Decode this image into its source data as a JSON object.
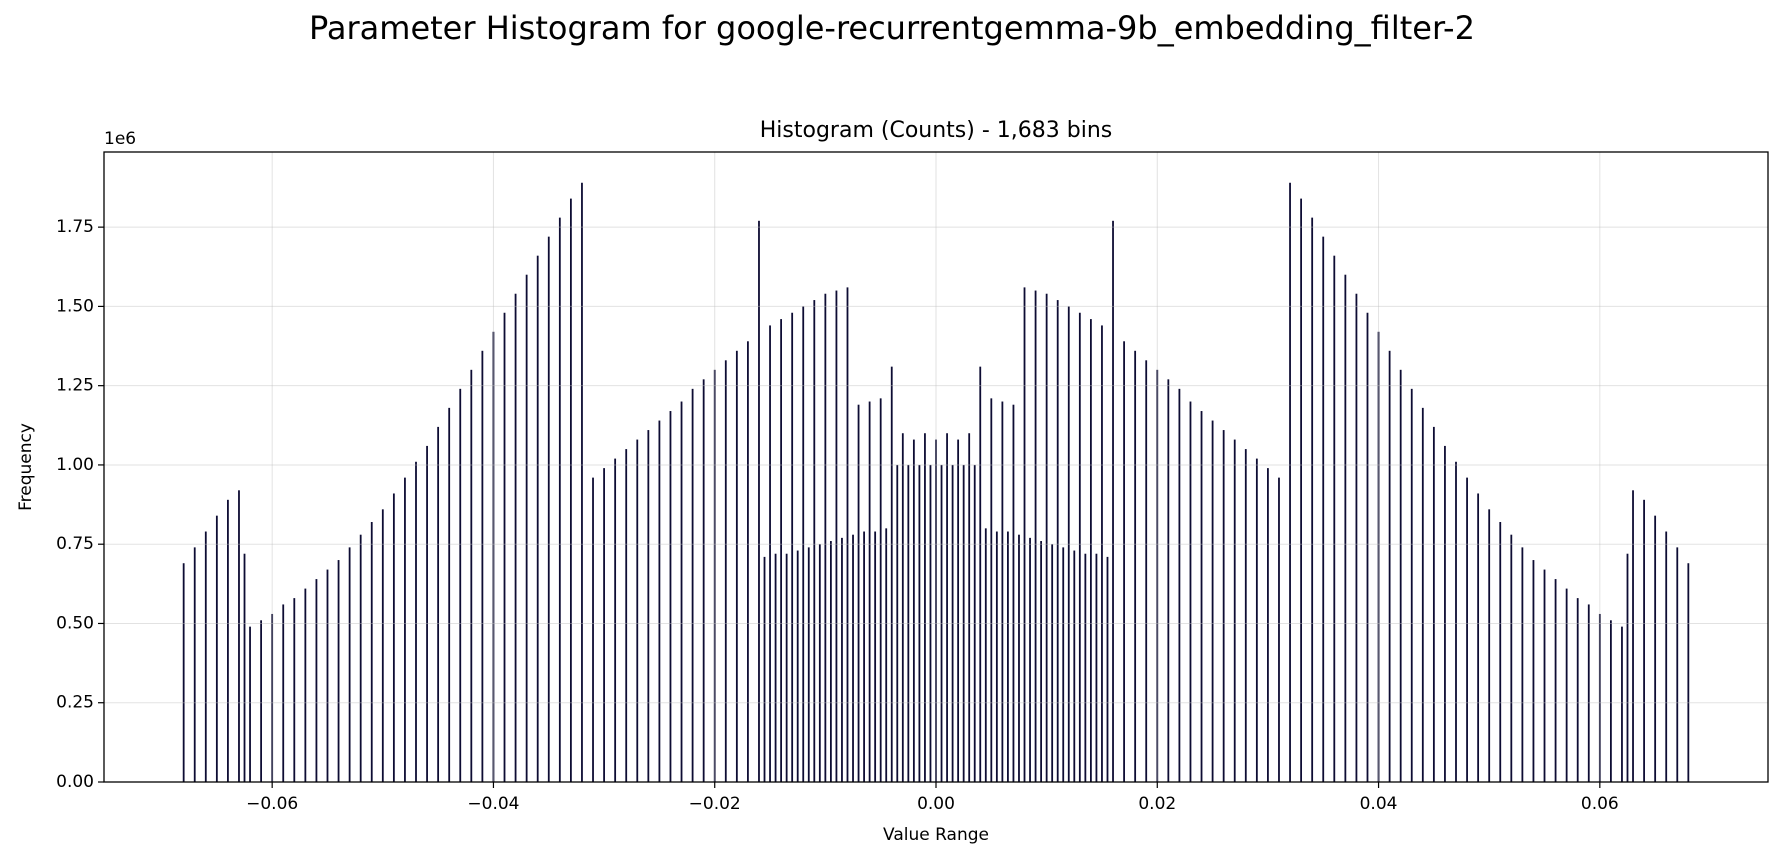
{
  "chart_data": {
    "type": "spike",
    "title": "Parameter Histogram for google-recurrentgemma-9b_embedding_filter-2",
    "subtitle": "Histogram (Counts) - 1,683 bins",
    "xlabel": "Value Range",
    "ylabel": "Frequency",
    "y_offset_label": "1e6",
    "color": "#0d0c33",
    "grid": true,
    "xlim": [
      -0.0752,
      0.0752
    ],
    "ylim": [
      0,
      1.987
    ],
    "xticks": [
      {
        "value": -0.06,
        "label": "−0.06"
      },
      {
        "value": -0.04,
        "label": "−0.04"
      },
      {
        "value": -0.02,
        "label": "−0.02"
      },
      {
        "value": 0,
        "label": "0.00"
      },
      0.02,
      0.04,
      0.06
    ],
    "yticks": [
      {
        "value": 0,
        "label": "0.00"
      },
      0.25,
      {
        "value": 0.5,
        "label": "0.50"
      },
      0.75,
      {
        "value": 1,
        "label": "1.00"
      },
      1.25,
      {
        "value": 1.5,
        "label": "1.50"
      },
      1.75
    ],
    "x": [
      -0.068,
      -0.067,
      -0.066,
      -0.065,
      -0.064,
      -0.063,
      -0.0625,
      -0.062,
      -0.061,
      -0.06,
      -0.059,
      -0.058,
      -0.057,
      -0.056,
      -0.055,
      -0.054,
      -0.053,
      -0.052,
      -0.051,
      -0.05,
      -0.049,
      -0.048,
      -0.047,
      -0.046,
      -0.045,
      -0.044,
      -0.043,
      -0.042,
      -0.041,
      -0.04,
      -0.039,
      -0.038,
      -0.037,
      -0.036,
      -0.035,
      -0.034,
      -0.033,
      -0.032,
      -0.031,
      -0.03,
      -0.029,
      -0.028,
      -0.027,
      -0.026,
      -0.025,
      -0.024,
      -0.023,
      -0.022,
      -0.021,
      -0.02,
      -0.019,
      -0.018,
      -0.017,
      -0.016,
      -0.0155,
      -0.015,
      -0.0145,
      -0.014,
      -0.0135,
      -0.013,
      -0.0125,
      -0.012,
      -0.0115,
      -0.011,
      -0.0105,
      -0.01,
      -0.0095,
      -0.009,
      -0.0085,
      -0.008,
      -0.0075,
      -0.007,
      -0.0065,
      -0.006,
      -0.0055,
      -0.005,
      -0.0045,
      -0.004,
      -0.0035,
      -0.003,
      -0.0025,
      -0.002,
      -0.0015,
      -0.001,
      -0.0005,
      0,
      0.0005,
      0.001,
      0.0015,
      0.002,
      0.0025,
      0.003,
      0.0035,
      0.004,
      0.0045,
      0.005,
      0.0055,
      0.006,
      0.0065,
      0.007,
      0.0075,
      0.008,
      0.0085,
      0.009,
      0.0095,
      0.01,
      0.0105,
      0.011,
      0.0115,
      0.012,
      0.0125,
      0.013,
      0.0135,
      0.014,
      0.0145,
      0.015,
      0.0155,
      0.016,
      0.017,
      0.018,
      0.019,
      0.02,
      0.021,
      0.022,
      0.023,
      0.024,
      0.025,
      0.026,
      0.027,
      0.028,
      0.029,
      0.03,
      0.031,
      0.032,
      0.033,
      0.034,
      0.035,
      0.036,
      0.037,
      0.038,
      0.039,
      0.04,
      0.041,
      0.042,
      0.043,
      0.044,
      0.045,
      0.046,
      0.047,
      0.048,
      0.049,
      0.05,
      0.051,
      0.052,
      0.053,
      0.054,
      0.055,
      0.056,
      0.057,
      0.058,
      0.059,
      0.06,
      0.061,
      0.062,
      0.0625,
      0.063,
      0.064,
      0.065,
      0.066,
      0.067,
      0.068
    ],
    "values": [
      0.69,
      0.74,
      0.79,
      0.84,
      0.89,
      0.92,
      0.72,
      0.49,
      0.51,
      0.53,
      0.56,
      0.58,
      0.61,
      0.64,
      0.67,
      0.7,
      0.74,
      0.78,
      0.82,
      0.86,
      0.91,
      0.96,
      1.01,
      1.06,
      1.12,
      1.18,
      1.24,
      1.3,
      1.36,
      1.42,
      1.48,
      1.54,
      1.6,
      1.66,
      1.72,
      1.78,
      1.84,
      1.89,
      0.96,
      0.99,
      1.02,
      1.05,
      1.08,
      1.11,
      1.14,
      1.17,
      1.2,
      1.24,
      1.27,
      1.3,
      1.33,
      1.36,
      1.39,
      1.77,
      0.71,
      1.44,
      0.72,
      1.46,
      0.72,
      1.48,
      0.73,
      1.5,
      0.74,
      1.52,
      0.75,
      1.54,
      0.76,
      1.55,
      0.77,
      1.56,
      0.78,
      1.19,
      0.79,
      1.2,
      0.79,
      1.21,
      0.8,
      1.31,
      1.0,
      1.1,
      1.0,
      1.08,
      1.0,
      1.1,
      1.0,
      1.08,
      1.0,
      1.1,
      1.0,
      1.08,
      1.0,
      1.1,
      1.0,
      1.31,
      0.8,
      1.21,
      0.79,
      1.2,
      0.79,
      1.19,
      0.78,
      1.56,
      0.77,
      1.55,
      0.76,
      1.54,
      0.75,
      1.52,
      0.74,
      1.5,
      0.73,
      1.48,
      0.72,
      1.46,
      0.72,
      1.44,
      0.71,
      1.77,
      1.39,
      1.36,
      1.33,
      1.3,
      1.27,
      1.24,
      1.2,
      1.17,
      1.14,
      1.11,
      1.08,
      1.05,
      1.02,
      0.99,
      0.96,
      1.89,
      1.84,
      1.78,
      1.72,
      1.66,
      1.6,
      1.54,
      1.48,
      1.42,
      1.36,
      1.3,
      1.24,
      1.18,
      1.12,
      1.06,
      1.01,
      0.96,
      0.91,
      0.86,
      0.82,
      0.78,
      0.74,
      0.7,
      0.67,
      0.64,
      0.61,
      0.58,
      0.56,
      0.53,
      0.51,
      0.49,
      0.72,
      0.92,
      0.89,
      0.84,
      0.79,
      0.74,
      0.69
    ]
  }
}
